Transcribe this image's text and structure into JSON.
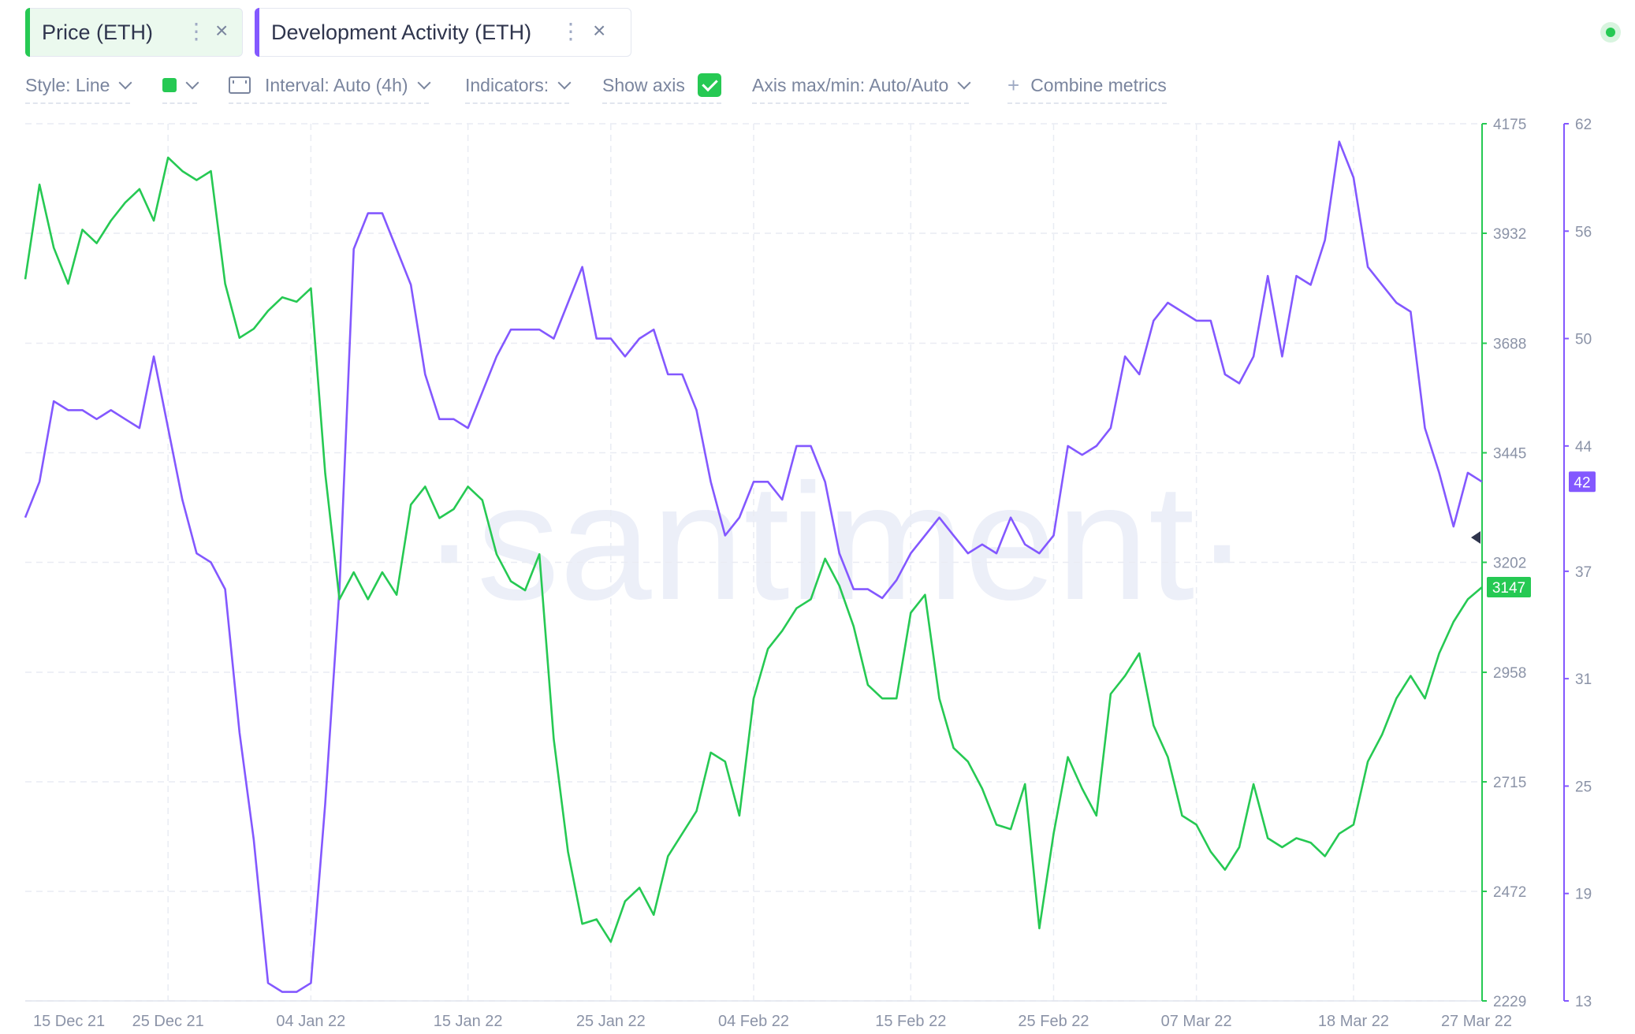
{
  "tabs": [
    {
      "label": "Price (ETH)",
      "color": "#26c953"
    },
    {
      "label": "Development Activity (ETH)",
      "color": "#8358ff"
    }
  ],
  "toolbar": {
    "style_label": "Style: Line",
    "color_swatch": "#26c953",
    "interval_label": "Interval: Auto (4h)",
    "indicators_label": "Indicators:",
    "show_axis_label": "Show axis",
    "axis_maxmin_label": "Axis max/min: Auto/Auto",
    "combine_label": "Combine metrics"
  },
  "watermark": "·santiment·",
  "chart_data": {
    "type": "line",
    "x_ticks": [
      "15 Dec 21",
      "25 Dec 21",
      "04 Jan 22",
      "15 Jan 22",
      "25 Jan 22",
      "04 Feb 22",
      "15 Feb 22",
      "25 Feb 22",
      "07 Mar 22",
      "18 Mar 22",
      "27 Mar 22"
    ],
    "x_range": [
      "2021-12-15",
      "2022-03-27"
    ],
    "grid": true,
    "series": [
      {
        "name": "Price (ETH)",
        "color": "#26c953",
        "axis": "right-1",
        "ylim": [
          2229,
          4175
        ],
        "y_ticks": [
          2229,
          2472,
          2715,
          2958,
          3202,
          3445,
          3688,
          3932,
          4175
        ],
        "last_value": "3147",
        "points": [
          [
            "2021-12-15",
            3830
          ],
          [
            "2021-12-16",
            4040
          ],
          [
            "2021-12-17",
            3900
          ],
          [
            "2021-12-18",
            3820
          ],
          [
            "2021-12-19",
            3940
          ],
          [
            "2021-12-20",
            3910
          ],
          [
            "2021-12-21",
            3960
          ],
          [
            "2021-12-22",
            4000
          ],
          [
            "2021-12-23",
            4030
          ],
          [
            "2021-12-24",
            3960
          ],
          [
            "2021-12-25",
            4100
          ],
          [
            "2021-12-26",
            4070
          ],
          [
            "2021-12-27",
            4050
          ],
          [
            "2021-12-28",
            4070
          ],
          [
            "2021-12-29",
            3820
          ],
          [
            "2021-12-30",
            3700
          ],
          [
            "2021-12-31",
            3720
          ],
          [
            "2022-01-01",
            3760
          ],
          [
            "2022-01-02",
            3790
          ],
          [
            "2022-01-03",
            3780
          ],
          [
            "2022-01-04",
            3810
          ],
          [
            "2022-01-05",
            3400
          ],
          [
            "2022-01-06",
            3120
          ],
          [
            "2022-01-07",
            3180
          ],
          [
            "2022-01-08",
            3120
          ],
          [
            "2022-01-09",
            3180
          ],
          [
            "2022-01-10",
            3130
          ],
          [
            "2022-01-11",
            3330
          ],
          [
            "2022-01-12",
            3370
          ],
          [
            "2022-01-13",
            3300
          ],
          [
            "2022-01-14",
            3320
          ],
          [
            "2022-01-15",
            3370
          ],
          [
            "2022-01-16",
            3340
          ],
          [
            "2022-01-17",
            3220
          ],
          [
            "2022-01-18",
            3160
          ],
          [
            "2022-01-19",
            3140
          ],
          [
            "2022-01-20",
            3220
          ],
          [
            "2022-01-21",
            2810
          ],
          [
            "2022-01-22",
            2560
          ],
          [
            "2022-01-23",
            2400
          ],
          [
            "2022-01-24",
            2410
          ],
          [
            "2022-01-25",
            2360
          ],
          [
            "2022-01-26",
            2450
          ],
          [
            "2022-01-27",
            2480
          ],
          [
            "2022-01-28",
            2420
          ],
          [
            "2022-01-29",
            2550
          ],
          [
            "2022-01-30",
            2600
          ],
          [
            "2022-01-31",
            2650
          ],
          [
            "2022-02-01",
            2780
          ],
          [
            "2022-02-02",
            2760
          ],
          [
            "2022-02-03",
            2640
          ],
          [
            "2022-02-04",
            2900
          ],
          [
            "2022-02-05",
            3010
          ],
          [
            "2022-02-06",
            3050
          ],
          [
            "2022-02-07",
            3100
          ],
          [
            "2022-02-08",
            3120
          ],
          [
            "2022-02-09",
            3210
          ],
          [
            "2022-02-10",
            3150
          ],
          [
            "2022-02-11",
            3060
          ],
          [
            "2022-02-12",
            2930
          ],
          [
            "2022-02-13",
            2900
          ],
          [
            "2022-02-14",
            2900
          ],
          [
            "2022-02-15",
            3090
          ],
          [
            "2022-02-16",
            3130
          ],
          [
            "2022-02-17",
            2900
          ],
          [
            "2022-02-18",
            2790
          ],
          [
            "2022-02-19",
            2760
          ],
          [
            "2022-02-20",
            2700
          ],
          [
            "2022-02-21",
            2620
          ],
          [
            "2022-02-22",
            2610
          ],
          [
            "2022-02-23",
            2710
          ],
          [
            "2022-02-24",
            2390
          ],
          [
            "2022-02-25",
            2600
          ],
          [
            "2022-02-26",
            2770
          ],
          [
            "2022-02-27",
            2700
          ],
          [
            "2022-02-28",
            2640
          ],
          [
            "2022-03-01",
            2910
          ],
          [
            "2022-03-02",
            2950
          ],
          [
            "2022-03-03",
            3000
          ],
          [
            "2022-03-04",
            2840
          ],
          [
            "2022-03-05",
            2770
          ],
          [
            "2022-03-06",
            2640
          ],
          [
            "2022-03-07",
            2620
          ],
          [
            "2022-03-08",
            2560
          ],
          [
            "2022-03-09",
            2520
          ],
          [
            "2022-03-10",
            2570
          ],
          [
            "2022-03-11",
            2710
          ],
          [
            "2022-03-12",
            2590
          ],
          [
            "2022-03-13",
            2570
          ],
          [
            "2022-03-14",
            2590
          ],
          [
            "2022-03-15",
            2580
          ],
          [
            "2022-03-16",
            2550
          ],
          [
            "2022-03-17",
            2600
          ],
          [
            "2022-03-18",
            2620
          ],
          [
            "2022-03-19",
            2760
          ],
          [
            "2022-03-20",
            2820
          ],
          [
            "2022-03-21",
            2900
          ],
          [
            "2022-03-22",
            2950
          ],
          [
            "2022-03-23",
            2900
          ],
          [
            "2022-03-24",
            3000
          ],
          [
            "2022-03-25",
            3070
          ],
          [
            "2022-03-26",
            3120
          ],
          [
            "2022-03-27",
            3147
          ]
        ]
      },
      {
        "name": "Development Activity (ETH)",
        "color": "#8358ff",
        "axis": "right-2",
        "ylim": [
          13,
          62
        ],
        "y_ticks": [
          13,
          19,
          25,
          31,
          37,
          44,
          50,
          56,
          62
        ],
        "last_value": "42",
        "points": [
          [
            "2021-12-15",
            40
          ],
          [
            "2021-12-16",
            42
          ],
          [
            "2021-12-17",
            46.5
          ],
          [
            "2021-12-18",
            46
          ],
          [
            "2021-12-19",
            46
          ],
          [
            "2021-12-20",
            45.5
          ],
          [
            "2021-12-21",
            46
          ],
          [
            "2021-12-22",
            45.5
          ],
          [
            "2021-12-23",
            45
          ],
          [
            "2021-12-24",
            49
          ],
          [
            "2021-12-25",
            45
          ],
          [
            "2021-12-26",
            41
          ],
          [
            "2021-12-27",
            38
          ],
          [
            "2021-12-28",
            37.5
          ],
          [
            "2021-12-29",
            36
          ],
          [
            "2021-12-30",
            28
          ],
          [
            "2021-12-31",
            22
          ],
          [
            "2022-01-01",
            14
          ],
          [
            "2022-01-02",
            13.5
          ],
          [
            "2022-01-03",
            13.5
          ],
          [
            "2022-01-04",
            14
          ],
          [
            "2022-01-05",
            24
          ],
          [
            "2022-01-06",
            36
          ],
          [
            "2022-01-07",
            55
          ],
          [
            "2022-01-08",
            57
          ],
          [
            "2022-01-09",
            57
          ],
          [
            "2022-01-10",
            55
          ],
          [
            "2022-01-11",
            53
          ],
          [
            "2022-01-12",
            48
          ],
          [
            "2022-01-13",
            45.5
          ],
          [
            "2022-01-14",
            45.5
          ],
          [
            "2022-01-15",
            45
          ],
          [
            "2022-01-16",
            47
          ],
          [
            "2022-01-17",
            49
          ],
          [
            "2022-01-18",
            50.5
          ],
          [
            "2022-01-19",
            50.5
          ],
          [
            "2022-01-20",
            50.5
          ],
          [
            "2022-01-21",
            50
          ],
          [
            "2022-01-22",
            52
          ],
          [
            "2022-01-23",
            54
          ],
          [
            "2022-01-24",
            50
          ],
          [
            "2022-01-25",
            50
          ],
          [
            "2022-01-26",
            49
          ],
          [
            "2022-01-27",
            50
          ],
          [
            "2022-01-28",
            50.5
          ],
          [
            "2022-01-29",
            48
          ],
          [
            "2022-01-30",
            48
          ],
          [
            "2022-01-31",
            46
          ],
          [
            "2022-02-01",
            42
          ],
          [
            "2022-02-02",
            39
          ],
          [
            "2022-02-03",
            40
          ],
          [
            "2022-02-04",
            42
          ],
          [
            "2022-02-05",
            42
          ],
          [
            "2022-02-06",
            41
          ],
          [
            "2022-02-07",
            44
          ],
          [
            "2022-02-08",
            44
          ],
          [
            "2022-02-09",
            42
          ],
          [
            "2022-02-10",
            38
          ],
          [
            "2022-02-11",
            36
          ],
          [
            "2022-02-12",
            36
          ],
          [
            "2022-02-13",
            35.5
          ],
          [
            "2022-02-14",
            36.5
          ],
          [
            "2022-02-15",
            38
          ],
          [
            "2022-02-16",
            39
          ],
          [
            "2022-02-17",
            40
          ],
          [
            "2022-02-18",
            39
          ],
          [
            "2022-02-19",
            38
          ],
          [
            "2022-02-20",
            38.5
          ],
          [
            "2022-02-21",
            38
          ],
          [
            "2022-02-22",
            40
          ],
          [
            "2022-02-23",
            38.5
          ],
          [
            "2022-02-24",
            38
          ],
          [
            "2022-02-25",
            39
          ],
          [
            "2022-02-26",
            44
          ],
          [
            "2022-02-27",
            43.5
          ],
          [
            "2022-02-28",
            44
          ],
          [
            "2022-03-01",
            45
          ],
          [
            "2022-03-02",
            49
          ],
          [
            "2022-03-03",
            48
          ],
          [
            "2022-03-04",
            51
          ],
          [
            "2022-03-05",
            52
          ],
          [
            "2022-03-06",
            51.5
          ],
          [
            "2022-03-07",
            51
          ],
          [
            "2022-03-08",
            51
          ],
          [
            "2022-03-09",
            48
          ],
          [
            "2022-03-10",
            47.5
          ],
          [
            "2022-03-11",
            49
          ],
          [
            "2022-03-12",
            53.5
          ],
          [
            "2022-03-13",
            49
          ],
          [
            "2022-03-14",
            53.5
          ],
          [
            "2022-03-15",
            53
          ],
          [
            "2022-03-16",
            55.5
          ],
          [
            "2022-03-17",
            61
          ],
          [
            "2022-03-18",
            59
          ],
          [
            "2022-03-19",
            54
          ],
          [
            "2022-03-20",
            53
          ],
          [
            "2022-03-21",
            52
          ],
          [
            "2022-03-22",
            51.5
          ],
          [
            "2022-03-23",
            45
          ],
          [
            "2022-03-24",
            42.5
          ],
          [
            "2022-03-25",
            39.5
          ],
          [
            "2022-03-26",
            42.5
          ],
          [
            "2022-03-27",
            42
          ]
        ]
      }
    ]
  }
}
